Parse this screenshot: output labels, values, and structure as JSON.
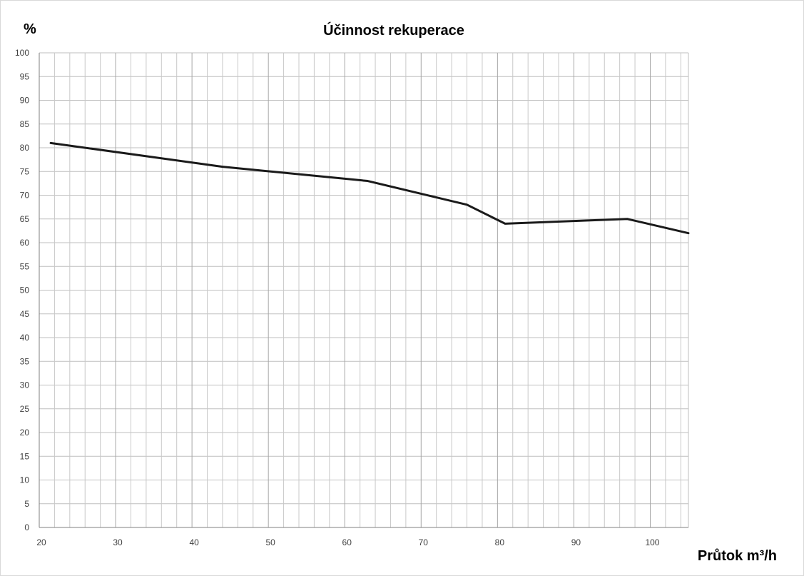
{
  "chart_data": {
    "type": "line",
    "title": "Účinnost rekuperace",
    "xlabel": "Průtok m³/h",
    "ylabel": "%",
    "xlim": [
      20,
      105
    ],
    "ylim": [
      0,
      100
    ],
    "x_ticks": [
      20,
      30,
      40,
      50,
      60,
      70,
      80,
      90,
      100
    ],
    "y_ticks": [
      0,
      5,
      10,
      15,
      20,
      25,
      30,
      35,
      40,
      45,
      50,
      55,
      60,
      65,
      70,
      75,
      80,
      85,
      90,
      95,
      100
    ],
    "grid": true,
    "minor_x_step": 2,
    "series": [
      {
        "color": "#1a1a1a",
        "x": [
          21.5,
          44,
          63,
          76,
          81,
          97,
          105
        ],
        "y": [
          81,
          76,
          73,
          68,
          64,
          65,
          62
        ]
      }
    ]
  }
}
